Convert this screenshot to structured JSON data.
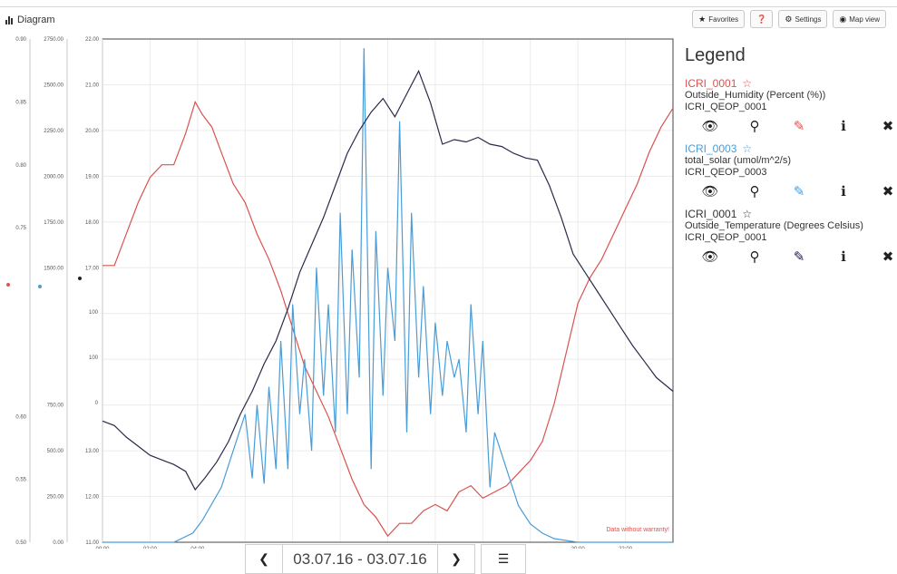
{
  "header": {
    "title": "Diagram"
  },
  "toolbar": {
    "favorites_label": "Favorites",
    "settings_label": "Settings",
    "mapview_label": "Map view"
  },
  "chart_data": {
    "type": "line",
    "x_labels": [
      "00:00",
      "02:00",
      "04:00",
      "20:00",
      "22:00"
    ],
    "x_hours": [
      0,
      2,
      4,
      20,
      22
    ],
    "xlim": [
      0,
      24
    ],
    "axes": [
      {
        "ticks": [
          "0.90",
          "0.85",
          "0.80",
          "0.75",
          "0.60",
          "0.55",
          "0.50"
        ],
        "values": [
          0.9,
          0.85,
          0.8,
          0.75,
          0.6,
          0.55,
          0.5
        ],
        "ylim": [
          0.5,
          0.9
        ]
      },
      {
        "ticks": [
          "2750.00",
          "2500.00",
          "2250.00",
          "2000.00",
          "1750.00",
          "1500.00",
          "750.00",
          "500.00",
          "250.00",
          "0.00"
        ],
        "values": [
          2750,
          2500,
          2250,
          2000,
          1750,
          1500,
          750,
          500,
          250,
          0
        ],
        "ylim": [
          0,
          2750
        ]
      },
      {
        "ticks": [
          "22.00",
          "21.00",
          "20.00",
          "19.00",
          "18.00",
          "17.00",
          "13.00",
          "12.00",
          "11.00"
        ],
        "values": [
          22,
          21,
          20,
          19,
          18,
          17,
          13,
          12,
          11
        ],
        "ylim": [
          11,
          22
        ]
      }
    ],
    "hidden_ticks": [
      "100",
      "100",
      "0",
      "0",
      "0"
    ],
    "series": [
      {
        "name": "Outside_Humidity (Percent (%))",
        "color": "#d9534f",
        "x": [
          0,
          0.5,
          1,
          1.5,
          2,
          2.5,
          3,
          3.5,
          3.9,
          4.2,
          4.6,
          5,
          5.5,
          6,
          6.5,
          7,
          7.5,
          8,
          8.5,
          9,
          9.5,
          10,
          10.5,
          11,
          11.5,
          12,
          12.5,
          13,
          13.5,
          14,
          14.5,
          15,
          15.5,
          16,
          16.5,
          17,
          17.5,
          18,
          18.5,
          19,
          19.5,
          20,
          20.5,
          21,
          21.5,
          22,
          22.5,
          23,
          23.5,
          24
        ],
        "y": [
          0.72,
          0.72,
          0.745,
          0.77,
          0.79,
          0.8,
          0.8,
          0.825,
          0.85,
          0.84,
          0.83,
          0.81,
          0.785,
          0.77,
          0.745,
          0.725,
          0.7,
          0.67,
          0.64,
          0.62,
          0.6,
          0.575,
          0.55,
          0.53,
          0.52,
          0.505,
          0.515,
          0.515,
          0.525,
          0.53,
          0.525,
          0.54,
          0.545,
          0.535,
          0.54,
          0.545,
          0.555,
          0.565,
          0.58,
          0.61,
          0.65,
          0.69,
          0.71,
          0.725,
          0.745,
          0.765,
          0.785,
          0.81,
          0.83,
          0.845
        ]
      },
      {
        "name": "total_solar (umol/m^2/s)",
        "color": "#4a9cd6",
        "x": [
          0,
          3,
          3.8,
          4.2,
          5,
          5.5,
          6,
          6.3,
          6.5,
          6.8,
          7,
          7.3,
          7.5,
          7.8,
          8,
          8.3,
          8.5,
          8.8,
          9,
          9.3,
          9.5,
          9.8,
          10,
          10.3,
          10.5,
          10.8,
          11,
          11.3,
          11.5,
          11.8,
          12,
          12.3,
          12.5,
          12.8,
          13,
          13.3,
          13.5,
          13.8,
          14,
          14.3,
          14.5,
          14.8,
          15,
          15.3,
          15.5,
          15.8,
          16,
          16.3,
          16.5,
          17,
          17.5,
          18,
          18.5,
          19,
          20,
          24
        ],
        "y": [
          0,
          0,
          50,
          120,
          300,
          500,
          700,
          350,
          750,
          320,
          850,
          400,
          1100,
          400,
          1300,
          700,
          1000,
          500,
          1500,
          800,
          1300,
          600,
          1800,
          700,
          1600,
          900,
          2700,
          400,
          1700,
          800,
          1500,
          1100,
          2300,
          600,
          1800,
          900,
          1400,
          700,
          1200,
          800,
          1100,
          900,
          1000,
          600,
          1300,
          700,
          1100,
          300,
          600,
          400,
          200,
          100,
          50,
          20,
          0,
          0
        ]
      },
      {
        "name": "Outside_Temperature (Degrees Celsius)",
        "color": "#2a2a4a",
        "x": [
          0,
          0.5,
          1,
          1.5,
          2,
          2.5,
          3,
          3.5,
          3.9,
          4.3,
          4.8,
          5.3,
          5.8,
          6.3,
          6.8,
          7.3,
          7.8,
          8.3,
          8.8,
          9.3,
          9.8,
          10.3,
          10.8,
          11.3,
          11.8,
          12.3,
          12.8,
          13.3,
          13.8,
          14.3,
          14.8,
          15.3,
          15.8,
          16.3,
          16.8,
          17.3,
          17.8,
          18.3,
          18.8,
          19.3,
          19.8,
          20.3,
          20.8,
          21.3,
          21.8,
          22.3,
          22.8,
          23.3,
          24
        ],
        "y": [
          13.65,
          13.55,
          13.3,
          13.1,
          12.9,
          12.8,
          12.7,
          12.55,
          12.15,
          12.4,
          12.75,
          13.2,
          13.8,
          14.3,
          14.9,
          15.4,
          16.1,
          16.9,
          17.5,
          18.1,
          18.8,
          19.5,
          20.0,
          20.4,
          20.7,
          20.3,
          20.8,
          21.3,
          20.6,
          19.7,
          19.8,
          19.75,
          19.85,
          19.7,
          19.65,
          19.5,
          19.4,
          19.35,
          18.8,
          18.1,
          17.3,
          16.9,
          16.5,
          16.1,
          15.7,
          15.3,
          14.95,
          14.6,
          14.3
        ]
      }
    ],
    "watermark": "Data without warranty!"
  },
  "navigator": {
    "date_range": "03.07.16 - 03.07.16",
    "prev_icon": "chevron-left-icon",
    "next_icon": "chevron-right-icon",
    "list_icon": "list-icon"
  },
  "legend": {
    "title": "Legend",
    "entries": [
      {
        "station": "ICRI_0001",
        "star": "☆",
        "parameter": "Outside_Humidity (Percent (%))",
        "source": "ICRI_QEOP_0001",
        "color": "#d9534f"
      },
      {
        "station": "ICRI_0003",
        "star": "☆",
        "parameter": "total_solar (umol/m^2/s)",
        "source": "ICRI_QEOP_0003",
        "color": "#4a9cd6"
      },
      {
        "station": "ICRI_0001",
        "star": "☆",
        "parameter": "Outside_Temperature (Degrees Celsius)",
        "source": "ICRI_QEOP_0001",
        "color": "#333333"
      }
    ]
  }
}
